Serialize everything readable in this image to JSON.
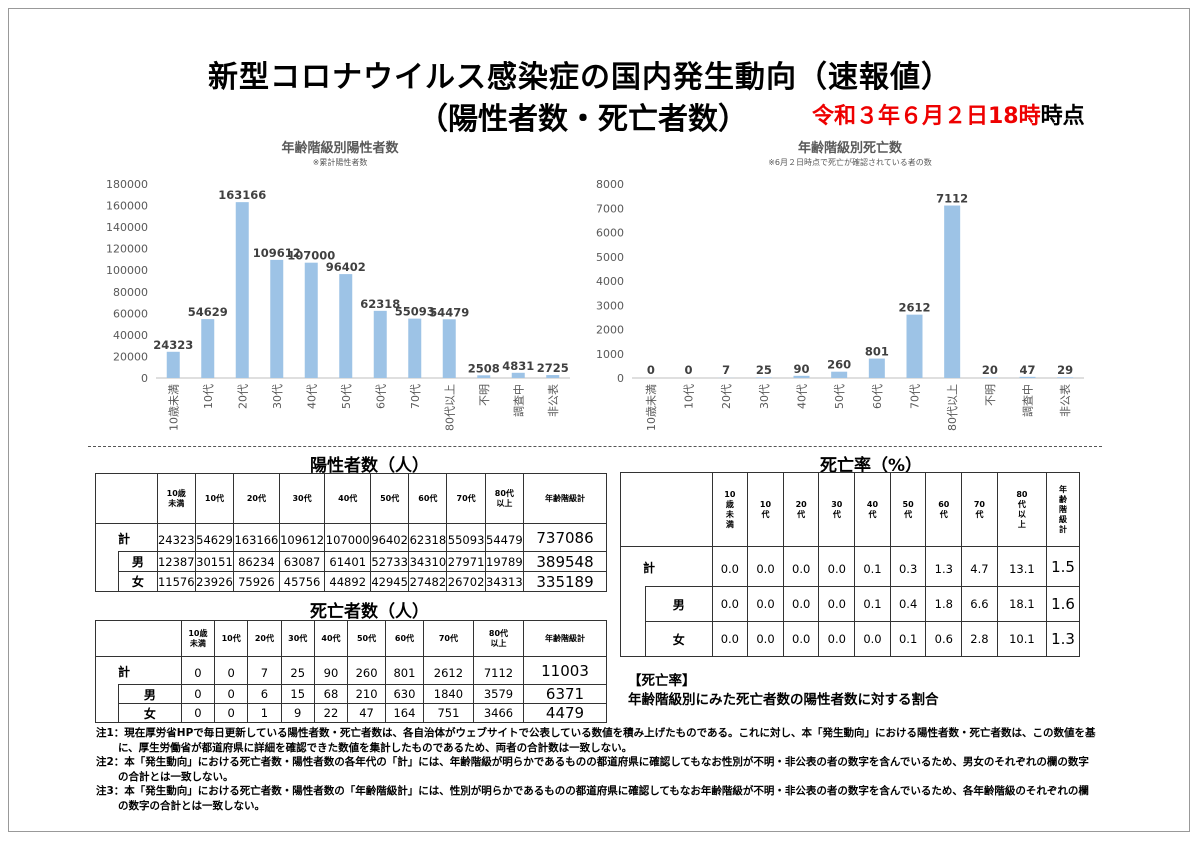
{
  "header": {
    "title_line1": "新型コロナウイルス感染症の国内発生動向（速報値）",
    "title_line2": "（陽性者数・死亡者数）",
    "date_prefix_red": "令和３年６月２日18時",
    "date_suffix": "時点"
  },
  "chart_data": [
    {
      "type": "bar",
      "title": "年齢階級別陽性者数",
      "subtitle": "※累計陽性者数",
      "categories": [
        "10歳未満",
        "10代",
        "20代",
        "30代",
        "40代",
        "50代",
        "60代",
        "70代",
        "80代以上",
        "不明",
        "調査中",
        "非公表"
      ],
      "values": [
        24323,
        54629,
        163166,
        109612,
        107000,
        96402,
        62318,
        55093,
        54479,
        2508,
        4831,
        2725
      ],
      "yticks": [
        0,
        20000,
        40000,
        60000,
        80000,
        100000,
        120000,
        140000,
        160000,
        180000
      ],
      "ylim": [
        0,
        180000
      ],
      "color": "#9dc3e6"
    },
    {
      "type": "bar",
      "title": "年齢階級別死亡数",
      "subtitle": "※6月２日時点で死亡が確認されている者の数",
      "categories": [
        "10歳未満",
        "10代",
        "20代",
        "30代",
        "40代",
        "50代",
        "60代",
        "70代",
        "80代以上",
        "不明",
        "調査中",
        "非公表"
      ],
      "values": [
        0,
        0,
        7,
        25,
        90,
        260,
        801,
        2612,
        7112,
        20,
        47,
        29
      ],
      "yticks": [
        0,
        1000,
        2000,
        3000,
        4000,
        5000,
        6000,
        7000,
        8000
      ],
      "ylim": [
        0,
        8000
      ],
      "color": "#9dc3e6"
    }
  ],
  "positive_table": {
    "title": "陽性者数（人）",
    "headers": [
      "10歳\n未満",
      "10代",
      "20代",
      "30代",
      "40代",
      "50代",
      "60代",
      "70代",
      "80代\n以上",
      "年齢階級計"
    ],
    "rows": [
      {
        "label": "計",
        "values": [
          "24323",
          "54629",
          "163166",
          "109612",
          "107000",
          "96402",
          "62318",
          "55093",
          "54479"
        ],
        "total": "737086"
      },
      {
        "label": "男",
        "values": [
          "12387",
          "30151",
          "86234",
          "63087",
          "61401",
          "52733",
          "34310",
          "27971",
          "19789"
        ],
        "total": "389548"
      },
      {
        "label": "女",
        "values": [
          "11576",
          "23926",
          "75926",
          "45756",
          "44892",
          "42945",
          "27482",
          "26702",
          "34313"
        ],
        "total": "335189"
      }
    ]
  },
  "death_table": {
    "title": "死亡者数（人）",
    "headers": [
      "10歳\n未満",
      "10代",
      "20代",
      "30代",
      "40代",
      "50代",
      "60代",
      "70代",
      "80代\n以上",
      "年齢階級計"
    ],
    "rows": [
      {
        "label": "計",
        "values": [
          "0",
          "0",
          "7",
          "25",
          "90",
          "260",
          "801",
          "2612",
          "7112"
        ],
        "total": "11003"
      },
      {
        "label": "男",
        "values": [
          "0",
          "0",
          "6",
          "15",
          "68",
          "210",
          "630",
          "1840",
          "3579"
        ],
        "total": "6371"
      },
      {
        "label": "女",
        "values": [
          "0",
          "0",
          "1",
          "9",
          "22",
          "47",
          "164",
          "751",
          "3466"
        ],
        "total": "4479"
      }
    ]
  },
  "rate_table": {
    "title": "死亡率（%）",
    "headers": [
      "10\n歳\n未\n満",
      "10\n代",
      "20\n代",
      "30\n代",
      "40\n代",
      "50\n代",
      "60\n代",
      "70\n代",
      "80\n代\n以\n上",
      "年\n齢\n階\n級\n計"
    ],
    "rows": [
      {
        "label": "計",
        "values": [
          "0.0",
          "0.0",
          "0.0",
          "0.0",
          "0.1",
          "0.3",
          "1.3",
          "4.7",
          "13.1"
        ],
        "total": "1.5"
      },
      {
        "label": "男",
        "values": [
          "0.0",
          "0.0",
          "0.0",
          "0.0",
          "0.1",
          "0.4",
          "1.8",
          "6.6",
          "18.1"
        ],
        "total": "1.6"
      },
      {
        "label": "女",
        "values": [
          "0.0",
          "0.0",
          "0.0",
          "0.0",
          "0.0",
          "0.1",
          "0.6",
          "2.8",
          "10.1"
        ],
        "total": "1.3"
      }
    ]
  },
  "rate_note": {
    "title": "【死亡率】",
    "text": "年齢階級別にみた死亡者数の陽性者数に対する割合"
  },
  "notes": [
    "注1：現在厚労省HPで毎日更新している陽性者数・死亡者数は、各自治体がウェブサイトで公表している数値を積み上げたものである。これに対し、本「発生動向」における陽性者数・死亡者数は、この数値を基に、厚生労働省が都道府県に詳細を確認できた数値を集計したものであるため、両者の合計数は一致しない。",
    "注2：本「発生動向」における死亡者数・陽性者数の各年代の「計」には、年齢階級が明らかであるものの都道府県に確認してもなお性別が不明・非公表の者の数字を含んでいるため、男女のそれぞれの欄の数字の合計とは一致しない。",
    "注3：本「発生動向」における死亡者数・陽性者数の「年齢階級計」には、性別が明らかであるものの都道府県に確認してもなお年齢階級が不明・非公表の者の数字を含んでいるため、各年齢階級のそれぞれの欄の数字の合計とは一致しない。"
  ]
}
